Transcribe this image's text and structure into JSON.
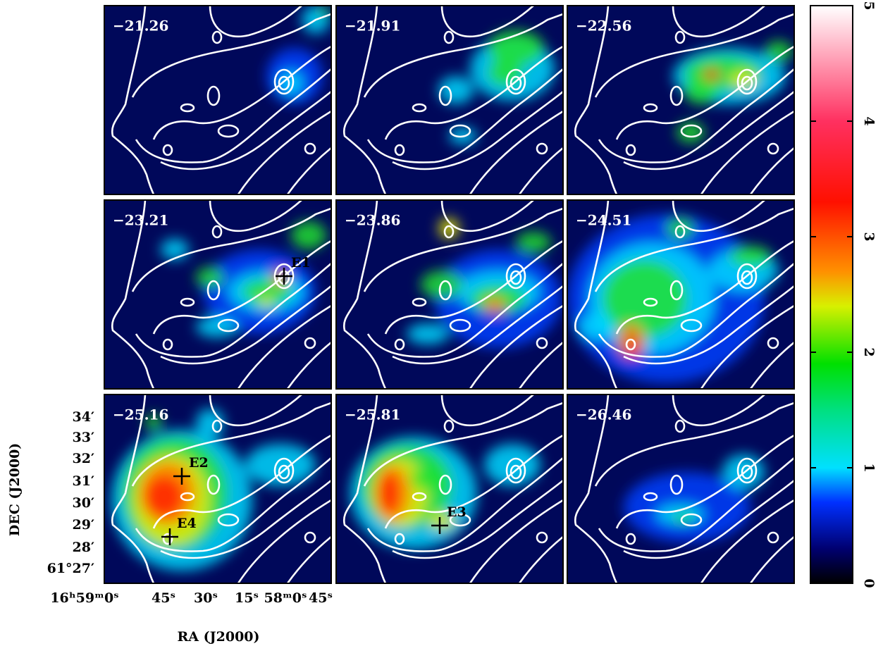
{
  "panels": [
    {
      "label": "−21.26"
    },
    {
      "label": "−21.91"
    },
    {
      "label": "−22.56"
    },
    {
      "label": "−23.21",
      "markers": [
        {
          "label": "E1"
        }
      ]
    },
    {
      "label": "−23.86"
    },
    {
      "label": "−24.51"
    },
    {
      "label": "−25.16",
      "markers": [
        {
          "label": "E2"
        },
        {
          "label": "E4"
        }
      ]
    },
    {
      "label": "−25.81",
      "markers": [
        {
          "label": "E3"
        }
      ]
    },
    {
      "label": "−26.46"
    }
  ],
  "x_axis": {
    "label": "RA (J2000)",
    "ticks": [
      "16ʰ59ᵐ0ˢ",
      "45ˢ",
      "30ˢ",
      "15ˢ",
      "58ᵐ0ˢ",
      "45ˢ"
    ]
  },
  "y_axis": {
    "label": "DEC (J2000)",
    "ticks": [
      "34′",
      "33′",
      "32′",
      "31′",
      "30′",
      "29′",
      "28′",
      "61°27′"
    ]
  },
  "colorbar": {
    "lim": [
      0,
      5
    ],
    "ticks": [
      0,
      1,
      2,
      3,
      4,
      5
    ]
  }
}
